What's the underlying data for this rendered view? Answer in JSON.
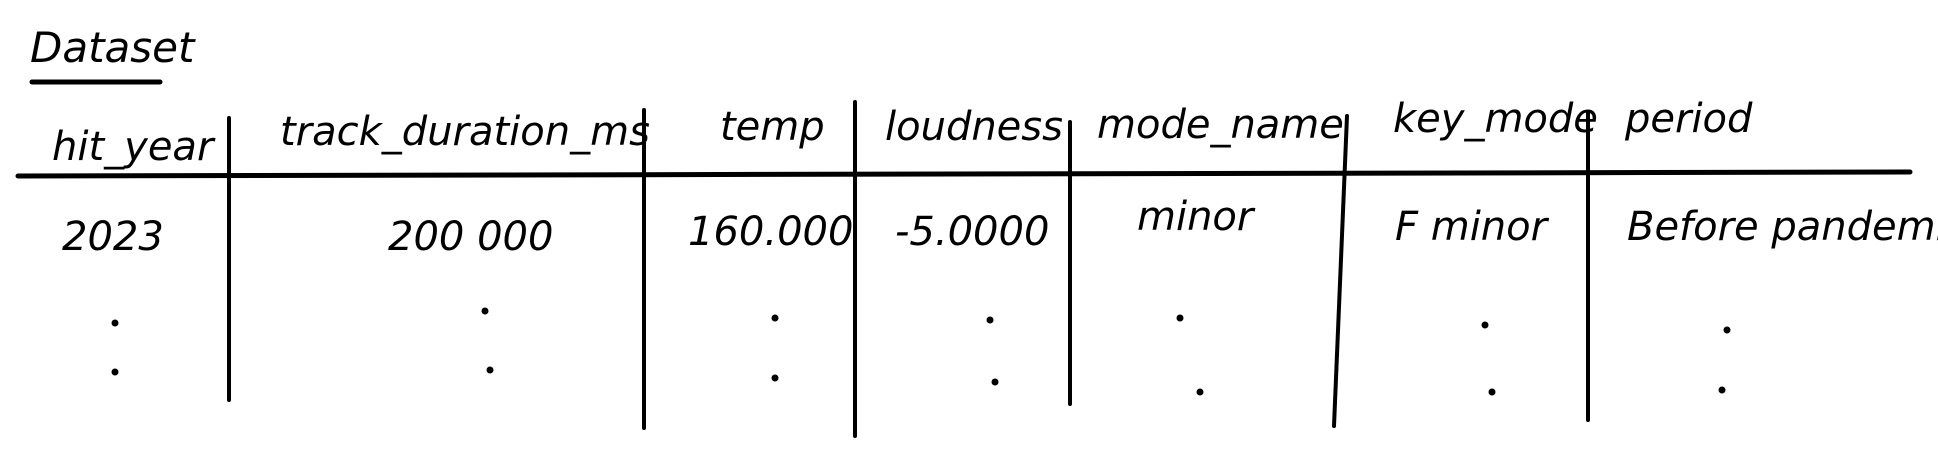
{
  "title": "Dataset",
  "table": {
    "headers": [
      "hit_year",
      "track_duration_ms",
      "temp",
      "loudness",
      "mode_name",
      "key_mode",
      "period"
    ],
    "first_row": [
      "2023",
      "200 000",
      "160.000",
      "-5.0000",
      "minor",
      "F minor",
      "Before pandemic"
    ]
  }
}
